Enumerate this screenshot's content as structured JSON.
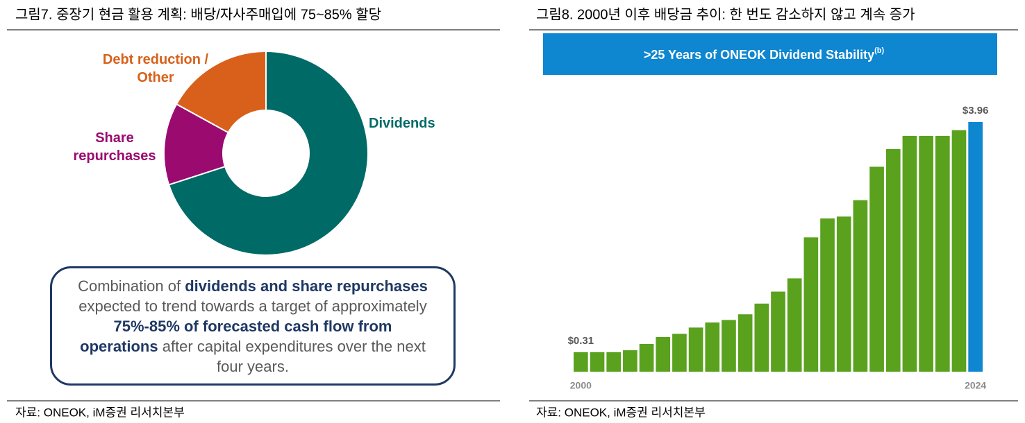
{
  "chart_data": [
    {
      "type": "pie",
      "title": "그림7. 중장기 현금 활용 계획: 배당/자사주매입에 75~85% 할당",
      "categories": [
        "Dividends",
        "Share repurchases",
        "Debt reduction / Other"
      ],
      "values": [
        70,
        13,
        17
      ],
      "colors": [
        "#006a66",
        "#9b0a6f",
        "#d9601a"
      ],
      "donut": true,
      "annotation": [
        {
          "text": "Combination of ",
          "bold": false
        },
        {
          "text": "dividends and share repurchases",
          "bold": true
        },
        {
          "text": " expected to trend towards a target of approximately ",
          "bold": false
        },
        {
          "text": "75%-85% of forecasted cash flow from operations",
          "bold": true
        },
        {
          "text": " after capital expenditures over the next four years.",
          "bold": false
        }
      ],
      "source": "자료: ONEOK, iM증권 리서치본부"
    },
    {
      "type": "bar",
      "title": "그림8. 2000년 이후 배당금 추이: 한 번도 감소하지 않고 계속 증가",
      "subtitle": ">25 Years of ONEOK Dividend Stability",
      "subtitle_note": "(b)",
      "categories": [
        "2000",
        null,
        null,
        null,
        null,
        null,
        null,
        null,
        null,
        null,
        null,
        null,
        null,
        null,
        null,
        null,
        null,
        null,
        null,
        null,
        null,
        null,
        null,
        null,
        "2024"
      ],
      "values": [
        0.31,
        0.31,
        0.31,
        0.34,
        0.44,
        0.55,
        0.6,
        0.7,
        0.78,
        0.82,
        0.91,
        1.08,
        1.27,
        1.48,
        2.13,
        2.43,
        2.46,
        2.72,
        3.25,
        3.53,
        3.74,
        3.74,
        3.74,
        3.83,
        3.96
      ],
      "value_labels": [
        "$0.31",
        null,
        null,
        null,
        null,
        null,
        null,
        null,
        null,
        null,
        null,
        null,
        null,
        null,
        null,
        null,
        null,
        null,
        null,
        null,
        null,
        null,
        null,
        null,
        "$3.96"
      ],
      "colors": [
        "#5aa11e",
        "#5aa11e",
        "#5aa11e",
        "#5aa11e",
        "#5aa11e",
        "#5aa11e",
        "#5aa11e",
        "#5aa11e",
        "#5aa11e",
        "#5aa11e",
        "#5aa11e",
        "#5aa11e",
        "#5aa11e",
        "#5aa11e",
        "#5aa11e",
        "#5aa11e",
        "#5aa11e",
        "#5aa11e",
        "#5aa11e",
        "#5aa11e",
        "#5aa11e",
        "#5aa11e",
        "#5aa11e",
        "#5aa11e",
        "#0e86d0"
      ],
      "ylim": [
        0,
        4.3
      ],
      "source": "자료: ONEOK, iM증권 리서치본부"
    }
  ]
}
